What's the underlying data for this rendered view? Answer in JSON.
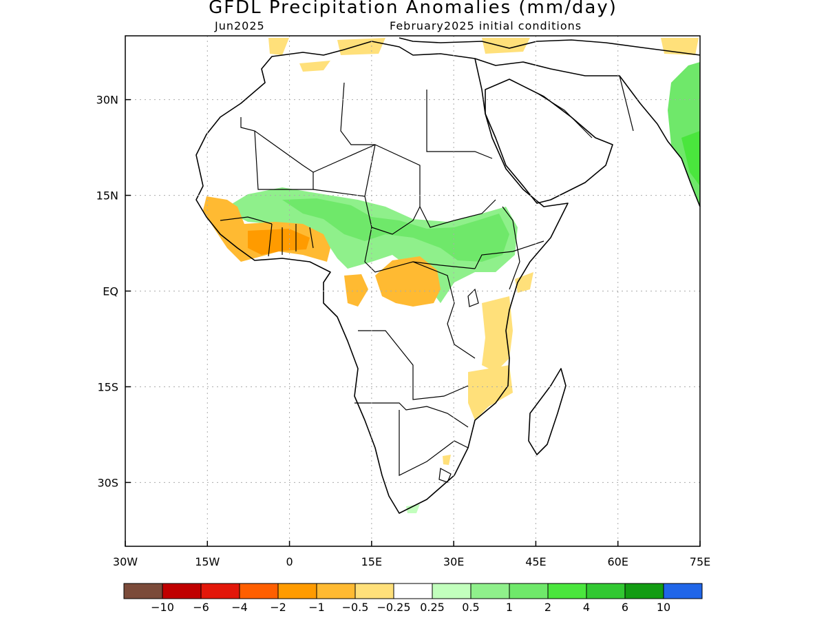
{
  "header": {
    "title": "GFDL Precipitation Anomalies (mm/day)",
    "target_month": "Jun2025",
    "init_conditions": "February2025 initial conditions"
  },
  "map": {
    "lon_ticks": [
      "30W",
      "15W",
      "0",
      "15E",
      "30E",
      "45E",
      "60E",
      "75E"
    ],
    "lat_ticks": [
      "30N",
      "15N",
      "EQ",
      "15S",
      "30S"
    ],
    "lon_range": [
      -30,
      75
    ],
    "lat_range": [
      -40,
      40
    ]
  },
  "colorbar": {
    "colors": [
      "#7b4b3a",
      "#c00000",
      "#e3170a",
      "#ff5f00",
      "#ff9b00",
      "#ffba32",
      "#ffe07a",
      "#ffffff",
      "#c2ffbd",
      "#8ff08b",
      "#6fe86a",
      "#4ae63d",
      "#32c832",
      "#139c13",
      "#2066e8"
    ],
    "labels": [
      "−10",
      "−6",
      "−4",
      "−2",
      "−1",
      "−0.5",
      "−0.25",
      "0.25",
      "0.5",
      "1",
      "2",
      "4",
      "6",
      "10"
    ]
  }
}
